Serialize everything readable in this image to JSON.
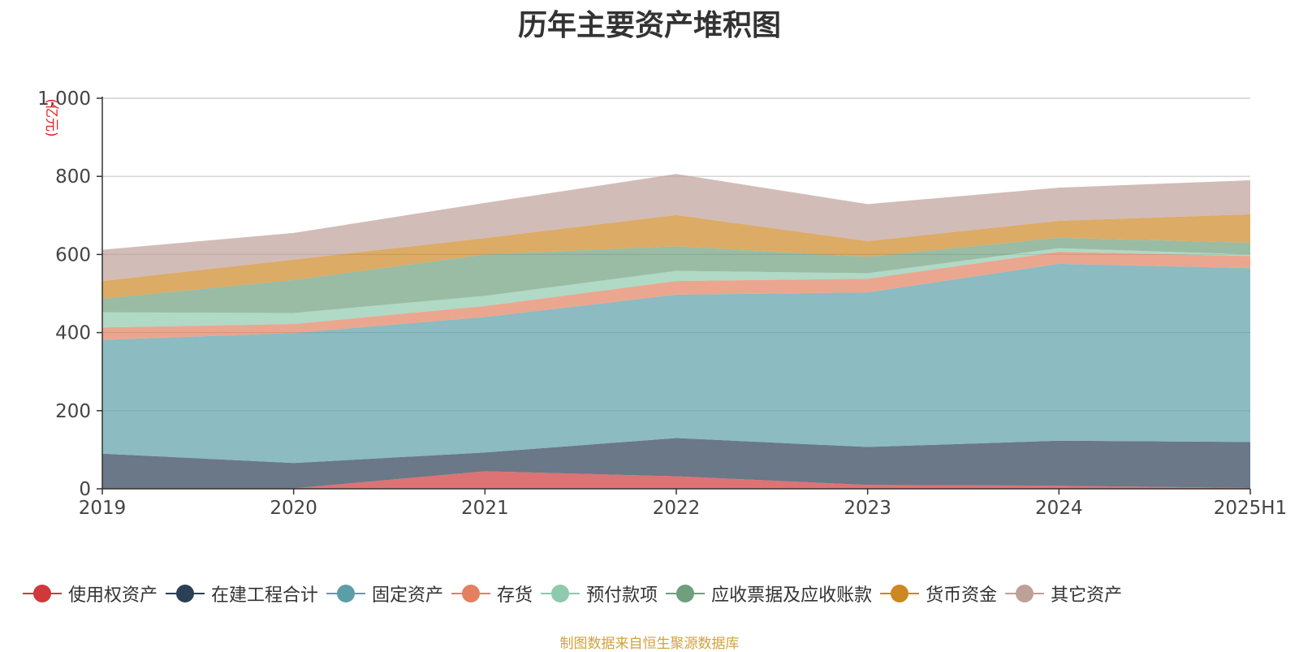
{
  "chart_data": {
    "type": "area",
    "stacked": true,
    "title": "历年主要资产堆积图",
    "ylabel": "(亿元)",
    "x": [
      "2019",
      "2020",
      "2021",
      "2022",
      "2023",
      "2024",
      "2025H1"
    ],
    "ylim": [
      0,
      1000
    ],
    "yticks": [
      "0",
      "200",
      "400",
      "600",
      "800",
      "1,000"
    ],
    "grid": true,
    "legend_position": "bottom",
    "series": [
      {
        "name": "使用权资产",
        "color": "#d0383a",
        "values": [
          0,
          1,
          45,
          32,
          10,
          8,
          2
        ]
      },
      {
        "name": "在建工程合计",
        "color": "#2b3f55",
        "values": [
          90,
          65,
          48,
          98,
          97,
          115,
          118
        ]
      },
      {
        "name": "固定资产",
        "color": "#5b9ea8",
        "values": [
          291,
          333,
          347,
          367,
          396,
          453,
          445
        ]
      },
      {
        "name": "存货",
        "color": "#e2805f",
        "values": [
          32,
          23,
          28,
          35,
          35,
          31,
          31
        ]
      },
      {
        "name": "预付款项",
        "color": "#8fc9ae",
        "values": [
          39,
          28,
          26,
          26,
          14,
          9,
          4
        ]
      },
      {
        "name": "应收票据及应收账款",
        "color": "#6f9f7d",
        "values": [
          35,
          85,
          106,
          63,
          42,
          27,
          30
        ]
      },
      {
        "name": "货币资金",
        "color": "#cd8723",
        "values": [
          45,
          52,
          42,
          80,
          40,
          43,
          73
        ]
      },
      {
        "name": "其它资产",
        "color": "#bfa098",
        "values": [
          80,
          68,
          90,
          105,
          95,
          85,
          87
        ]
      }
    ]
  },
  "source_note": "制图数据来自恒生聚源数据库"
}
